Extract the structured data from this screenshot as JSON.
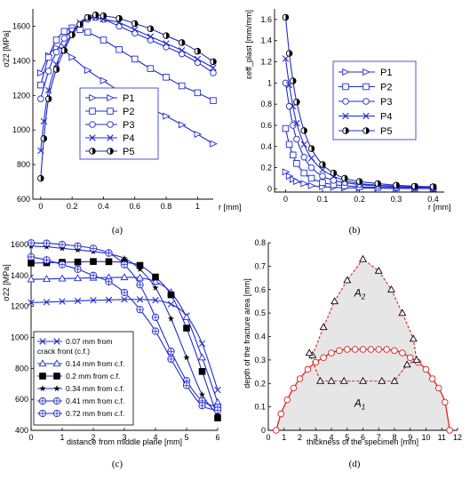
{
  "colors": {
    "blue": "#1f2bd0",
    "red": "#e0201c",
    "grey": "#e6e6e6",
    "black": "#000000"
  },
  "chart_data": [
    {
      "id": "a",
      "type": "line",
      "caption": "(a)",
      "xlabel": "r [mm]",
      "ylabel": "σ22 [MPa]",
      "xlim": [
        -0.05,
        1.1
      ],
      "ylim": [
        600,
        1700
      ],
      "xticks": [
        "0",
        "0.2",
        "0.4",
        "0.6",
        "0.8",
        "1"
      ],
      "yticks": [
        "600",
        "800",
        "1000",
        "1200",
        "1400",
        "1600"
      ],
      "legend": {
        "position": "center-right",
        "entries": [
          "P1",
          "P2",
          "P3",
          "P4",
          "P5"
        ]
      },
      "series": [
        {
          "name": "P1",
          "marker": "triangle-right",
          "x": [
            0,
            0.05,
            0.1,
            0.15,
            0.2,
            0.3,
            0.4,
            0.5,
            0.6,
            0.7,
            0.8,
            0.9,
            1.0,
            1.1
          ],
          "y": [
            1330,
            1430,
            1475,
            1460,
            1420,
            1345,
            1285,
            1225,
            1175,
            1125,
            1080,
            1030,
            975,
            920
          ]
        },
        {
          "name": "P2",
          "marker": "square",
          "x": [
            0,
            0.05,
            0.1,
            0.15,
            0.2,
            0.25,
            0.3,
            0.4,
            0.5,
            0.6,
            0.7,
            0.8,
            0.9,
            1.0,
            1.1
          ],
          "y": [
            1260,
            1420,
            1520,
            1570,
            1590,
            1580,
            1565,
            1520,
            1465,
            1410,
            1355,
            1305,
            1255,
            1215,
            1170
          ]
        },
        {
          "name": "P3",
          "marker": "circle",
          "x": [
            0,
            0.05,
            0.1,
            0.15,
            0.2,
            0.25,
            0.3,
            0.35,
            0.4,
            0.5,
            0.6,
            0.7,
            0.8,
            0.9,
            1.0,
            1.1
          ],
          "y": [
            1180,
            1340,
            1450,
            1530,
            1575,
            1610,
            1640,
            1650,
            1640,
            1600,
            1560,
            1520,
            1480,
            1440,
            1390,
            1330
          ]
        },
        {
          "name": "P4",
          "marker": "x",
          "x": [
            0,
            0.02,
            0.05,
            0.1,
            0.15,
            0.2,
            0.25,
            0.3,
            0.35,
            0.4,
            0.5,
            0.6,
            0.7,
            0.8,
            0.9,
            1.0,
            1.1
          ],
          "y": [
            880,
            1050,
            1230,
            1380,
            1480,
            1560,
            1620,
            1650,
            1650,
            1640,
            1620,
            1580,
            1540,
            1500,
            1460,
            1410,
            1360
          ]
        },
        {
          "name": "P5",
          "marker": "half-circle",
          "x": [
            0,
            0.02,
            0.05,
            0.1,
            0.15,
            0.2,
            0.25,
            0.3,
            0.35,
            0.4,
            0.5,
            0.6,
            0.7,
            0.8,
            0.9,
            1.0,
            1.1
          ],
          "y": [
            720,
            950,
            1180,
            1350,
            1460,
            1550,
            1610,
            1650,
            1665,
            1660,
            1645,
            1615,
            1585,
            1545,
            1505,
            1455,
            1395
          ]
        }
      ]
    },
    {
      "id": "b",
      "type": "line",
      "caption": "(b)",
      "xlabel": "r [mm]",
      "ylabel": "εeff_plast [mm/mm]",
      "xlim": [
        -0.03,
        0.43
      ],
      "ylim": [
        -0.03,
        1.7
      ],
      "xticks": [
        "0",
        "0.1",
        "0.2",
        "0.3",
        "0.4"
      ],
      "yticks": [
        "0",
        "0.2",
        "0.4",
        "0.6",
        "0.8",
        "1",
        "1.2",
        "1.4",
        "1.6"
      ],
      "legend": {
        "position": "top-right",
        "entries": [
          "P1",
          "P2",
          "P3",
          "P4",
          "P5"
        ]
      },
      "series": [
        {
          "name": "P1",
          "marker": "triangle-right",
          "x": [
            0,
            0.01,
            0.02,
            0.03,
            0.05,
            0.07,
            0.1,
            0.13,
            0.16,
            0.2,
            0.25,
            0.3,
            0.35,
            0.4
          ],
          "y": [
            0.16,
            0.12,
            0.09,
            0.07,
            0.05,
            0.03,
            0.02,
            0.015,
            0.01,
            0.008,
            0.006,
            0.005,
            0.004,
            0.003
          ]
        },
        {
          "name": "P2",
          "marker": "square",
          "x": [
            0,
            0.01,
            0.02,
            0.03,
            0.05,
            0.07,
            0.1,
            0.13,
            0.16,
            0.2,
            0.25,
            0.3,
            0.35,
            0.4
          ],
          "y": [
            0.57,
            0.42,
            0.32,
            0.24,
            0.15,
            0.1,
            0.06,
            0.04,
            0.03,
            0.02,
            0.015,
            0.01,
            0.008,
            0.006
          ]
        },
        {
          "name": "P3",
          "marker": "circle",
          "x": [
            0,
            0.01,
            0.02,
            0.03,
            0.05,
            0.07,
            0.1,
            0.13,
            0.16,
            0.2,
            0.25,
            0.3,
            0.35,
            0.4
          ],
          "y": [
            1.0,
            0.78,
            0.6,
            0.47,
            0.3,
            0.2,
            0.12,
            0.08,
            0.06,
            0.04,
            0.03,
            0.02,
            0.015,
            0.01
          ]
        },
        {
          "name": "P4",
          "marker": "x",
          "x": [
            0,
            0.01,
            0.02,
            0.03,
            0.05,
            0.07,
            0.1,
            0.13,
            0.16,
            0.2,
            0.25,
            0.3,
            0.35,
            0.4
          ],
          "y": [
            1.23,
            0.98,
            0.78,
            0.62,
            0.42,
            0.29,
            0.18,
            0.12,
            0.08,
            0.05,
            0.035,
            0.025,
            0.02,
            0.015
          ]
        },
        {
          "name": "P5",
          "marker": "half-circle",
          "x": [
            0,
            0.01,
            0.02,
            0.03,
            0.05,
            0.07,
            0.1,
            0.13,
            0.16,
            0.2,
            0.25,
            0.3,
            0.35,
            0.4
          ],
          "y": [
            1.62,
            1.28,
            1.02,
            0.82,
            0.55,
            0.38,
            0.23,
            0.15,
            0.1,
            0.07,
            0.05,
            0.035,
            0.025,
            0.02
          ]
        }
      ]
    },
    {
      "id": "c",
      "type": "line",
      "caption": "(c)",
      "xlabel": "distance from middle plane [mm]",
      "ylabel": "σ22 [MPa]",
      "xlim": [
        0,
        6
      ],
      "ylim": [
        400,
        1600
      ],
      "xticks": [
        "0",
        "1",
        "2",
        "3",
        "4",
        "5",
        "6"
      ],
      "yticks": [
        "400",
        "600",
        "800",
        "1000",
        "1200",
        "1400",
        "1600"
      ],
      "legend": {
        "position": "bottom-left",
        "entries": [
          "0.07 mm from crack front (c.f.)",
          "0.14 mm from c.f.",
          "0.2 mm from c.f.",
          "0.34 mm from c.f.",
          "0.41 mm from c.f.",
          "0.72 mm from c.f."
        ]
      },
      "series": [
        {
          "name": "0.07 mm from crack front (c.f.)",
          "marker": "x",
          "x": [
            0,
            0.5,
            1,
            1.5,
            2,
            2.5,
            3,
            3.5,
            4,
            4.5,
            5,
            5.5,
            6
          ],
          "y": [
            1225,
            1228,
            1232,
            1236,
            1240,
            1242,
            1245,
            1245,
            1240,
            1215,
            1140,
            960,
            660
          ]
        },
        {
          "name": "0.14 mm from c.f.",
          "marker": "triangle",
          "x": [
            0,
            0.5,
            1,
            1.5,
            2,
            2.5,
            3,
            3.5,
            4,
            4.5,
            5,
            5.5,
            6
          ],
          "y": [
            1375,
            1377,
            1380,
            1382,
            1385,
            1387,
            1388,
            1385,
            1360,
            1290,
            1130,
            870,
            580
          ]
        },
        {
          "name": "0.2 mm from c.f.",
          "marker": "filled-square",
          "x": [
            0,
            0.5,
            1,
            1.5,
            2,
            2.5,
            3,
            3.5,
            4,
            4.5,
            5,
            5.5,
            6
          ],
          "y": [
            1480,
            1482,
            1485,
            1487,
            1490,
            1489,
            1485,
            1465,
            1390,
            1275,
            1060,
            780,
            480
          ]
        },
        {
          "name": "0.34 mm from c.f.",
          "marker": "star",
          "x": [
            0,
            0.5,
            1,
            1.5,
            2,
            2.5,
            3,
            3.5,
            4,
            4.5,
            5,
            5.5,
            6
          ],
          "y": [
            1590,
            1585,
            1575,
            1565,
            1555,
            1540,
            1510,
            1440,
            1320,
            1120,
            870,
            630,
            500
          ]
        },
        {
          "name": "0.41 mm from c.f.",
          "marker": "circle-plus",
          "x": [
            0,
            0.5,
            1,
            1.5,
            2,
            2.5,
            3,
            3.5,
            4,
            4.5,
            5,
            5.5,
            6
          ],
          "y": [
            1610,
            1608,
            1600,
            1590,
            1575,
            1545,
            1470,
            1340,
            1130,
            910,
            720,
            590,
            550
          ]
        },
        {
          "name": "0.72 mm from c.f.",
          "marker": "circle-plus",
          "x": [
            0,
            0.5,
            1,
            1.5,
            2,
            2.5,
            3,
            3.5,
            4,
            4.5,
            5,
            5.5,
            6
          ],
          "y": [
            1520,
            1500,
            1470,
            1440,
            1400,
            1360,
            1290,
            1180,
            1040,
            860,
            690,
            560,
            530
          ]
        }
      ]
    },
    {
      "id": "d",
      "type": "area",
      "caption": "(d)",
      "xlabel": "thickness of the specimen [mm]",
      "ylabel": "depth of the fracture area [mm]",
      "xlim": [
        0,
        12
      ],
      "ylim": [
        0,
        0.8
      ],
      "xticks": [
        "0",
        "1",
        "2",
        "3",
        "4",
        "5",
        "6",
        "7",
        "8",
        "9",
        "10",
        "11",
        "12"
      ],
      "yticks": [
        "0",
        "0.1",
        "0.2",
        "0.3",
        "0.4",
        "0.5",
        "0.6",
        "0.7",
        "0.8"
      ],
      "region_labels": [
        "A2",
        "A1"
      ],
      "series": [
        {
          "name": "",
          "marker": "circle",
          "line": "solid",
          "x": [
            0.5,
            0.8,
            1.2,
            1.6,
            2.0,
            2.5,
            3.0,
            3.5,
            4.0,
            4.5,
            5.0,
            5.5,
            6.0,
            6.5,
            7.0,
            7.5,
            8.0,
            8.5,
            9.0,
            9.5,
            10.0,
            10.4,
            10.8,
            11.2,
            11.5
          ],
          "y": [
            0,
            0.07,
            0.13,
            0.18,
            0.22,
            0.26,
            0.29,
            0.31,
            0.33,
            0.34,
            0.345,
            0.345,
            0.345,
            0.345,
            0.345,
            0.345,
            0.34,
            0.33,
            0.31,
            0.29,
            0.26,
            0.22,
            0.18,
            0.12,
            0
          ]
        },
        {
          "name": "",
          "marker": "triangle",
          "line": "dashed",
          "x": [
            2.8,
            3.5,
            4.2,
            5.0,
            6.0,
            7.0,
            7.8,
            8.5,
            9.2,
            9.4,
            8.8,
            8.0,
            7.2,
            6.0,
            4.8,
            4.0,
            3.3,
            2.6
          ],
          "y": [
            0.32,
            0.44,
            0.55,
            0.64,
            0.73,
            0.68,
            0.6,
            0.5,
            0.39,
            0.3,
            0.28,
            0.21,
            0.21,
            0.21,
            0.21,
            0.21,
            0.21,
            0.33
          ]
        }
      ]
    }
  ]
}
